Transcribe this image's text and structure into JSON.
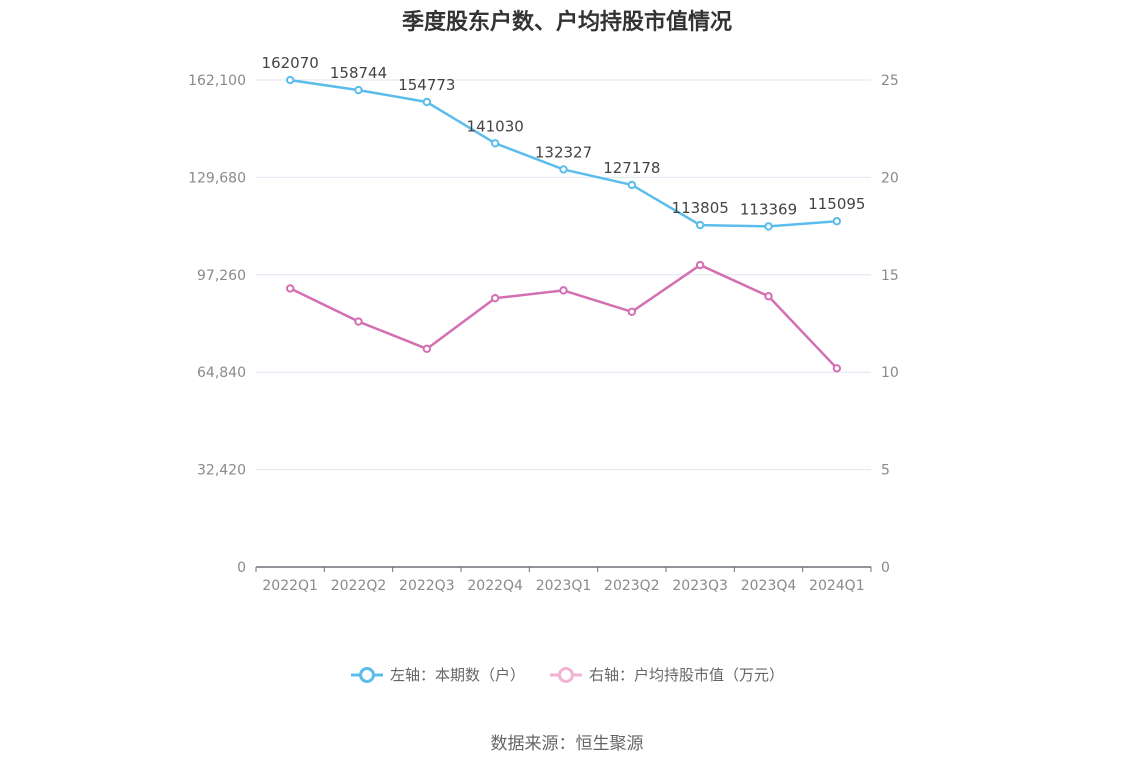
{
  "chart_data": {
    "type": "line",
    "title": "季度股东户数、户均持股市值情况",
    "categories": [
      "2022Q1",
      "2022Q2",
      "2022Q3",
      "2022Q4",
      "2023Q1",
      "2023Q2",
      "2023Q3",
      "2023Q4",
      "2024Q1"
    ],
    "left_axis": {
      "ticks": [
        0,
        32420,
        64840,
        97260,
        129680,
        162100
      ],
      "tick_labels": [
        "0",
        "32,420",
        "64,840",
        "97,260",
        "129,680",
        "162,100"
      ],
      "ylim": [
        0,
        162100
      ]
    },
    "right_axis": {
      "ticks": [
        0,
        5,
        10,
        15,
        20,
        25
      ],
      "tick_labels": [
        "0",
        "5",
        "10",
        "15",
        "20",
        "25"
      ],
      "ylim": [
        0,
        25
      ]
    },
    "series": [
      {
        "name": "左轴：本期数（户）",
        "axis": "left",
        "color": "#5bbdeb",
        "values": [
          162070,
          158744,
          154773,
          141030,
          132327,
          127178,
          113805,
          113369,
          115095
        ],
        "labels": [
          "162070",
          "158744",
          "154773",
          "141030",
          "132327",
          "127178",
          "113805",
          "113369",
          "115095"
        ]
      },
      {
        "name": "右轴：户均持股市值（万元）",
        "axis": "right",
        "color": "#d36fb2",
        "legend_color": "#f2b3d6",
        "values": [
          14.3,
          12.6,
          11.2,
          13.8,
          14.2,
          13.1,
          15.5,
          13.9,
          10.2
        ]
      }
    ],
    "grid": true,
    "legend_position": "bottom"
  },
  "source": "数据来源：恒生聚源"
}
